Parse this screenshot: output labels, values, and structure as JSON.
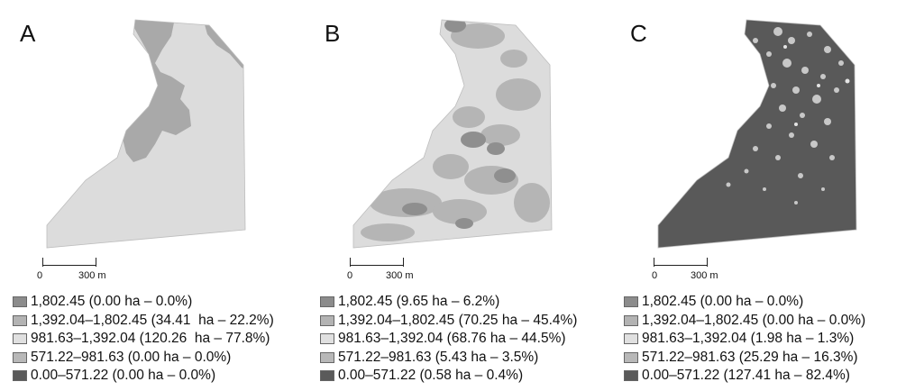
{
  "colors": {
    "class_1802": "#8c8c8c",
    "class_1392_1802": "#b3b3b3",
    "class_981_1392": "#dedede",
    "class_571_981": "#b8b8b8",
    "class_0_571": "#5a5a5a",
    "light_fill": "#dcdcdc",
    "medium_fill": "#a9a9a9",
    "dark_fill": "#595959"
  },
  "panels": [
    {
      "id": "A",
      "letter": "A",
      "scale": {
        "zero": "0",
        "distance": "300 m"
      },
      "legend": [
        "1,802.45 (0.00 ha – 0.0%)",
        "1,392.04–1,802.45 (34.41  ha – 22.2%)",
        "981.63–1,392.04 (120.26  ha – 77.8%)",
        "571.22–981.63 (0.00 ha – 0.0%)",
        "0.00–571.22 (0.00 ha – 0.0%)"
      ]
    },
    {
      "id": "B",
      "letter": "B",
      "scale": {
        "zero": "0",
        "distance": "300 m"
      },
      "legend": [
        "1,802.45 (9.65 ha – 6.2%)",
        "1,392.04–1,802.45 (70.25 ha – 45.4%)",
        "981.63–1,392.04 (68.76 ha – 44.5%)",
        "571.22–981.63 (5.43 ha – 3.5%)",
        "0.00–571.22 (0.58 ha – 0.4%)"
      ]
    },
    {
      "id": "C",
      "letter": "C",
      "scale": {
        "zero": "0",
        "distance": "300 m"
      },
      "legend": [
        "1,802.45 (0.00 ha – 0.0%)",
        "1,392.04–1,802.45 (0.00 ha – 0.0%)",
        "981.63–1,392.04 (1.98 ha – 1.3%)",
        "571.22–981.63 (25.29 ha – 16.3%)",
        "0.00–571.22 (127.41 ha – 82.4%)"
      ]
    }
  ]
}
